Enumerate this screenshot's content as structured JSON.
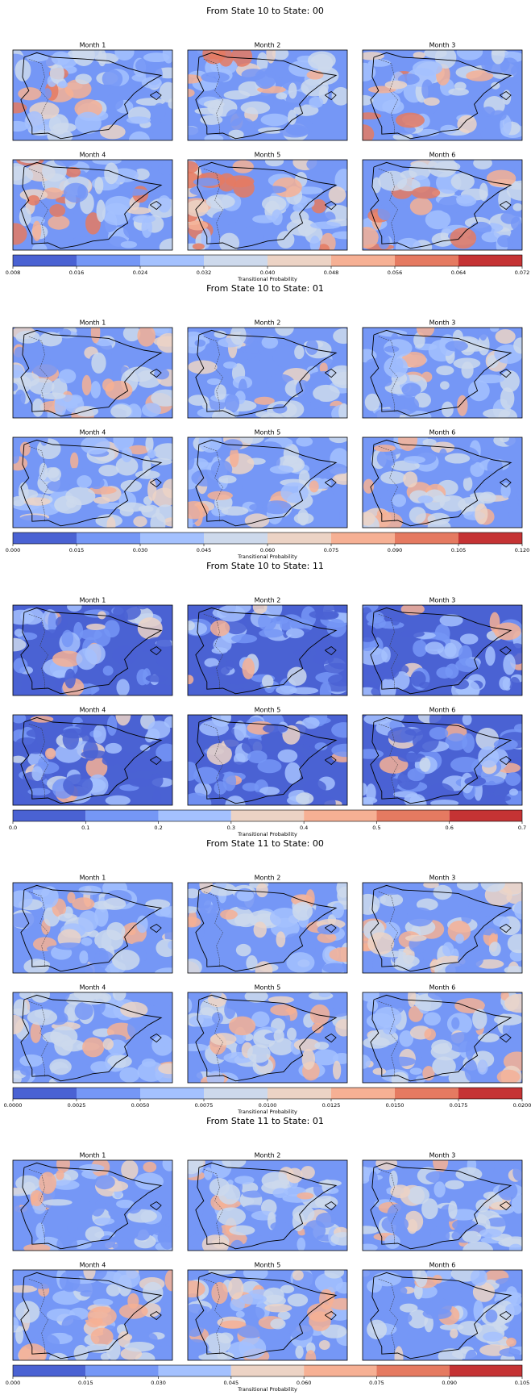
{
  "figures": [
    {
      "title": "From State 10 to State: 00",
      "subplots": [
        "Month 1",
        "Month 2",
        "Month 3",
        "Month 4",
        "Month 5",
        "Month 6"
      ],
      "colorbar": {
        "label": "Transitional Probability",
        "ticks": [
          0.008,
          0.016,
          0.024,
          0.032,
          {
            "value": 0.04,
            "label": "0.040"
          },
          0.048,
          0.056,
          0.064,
          0.072
        ]
      }
    },
    {
      "title": "From State 10 to State: 01",
      "subplots": [
        "Month 1",
        "Month 2",
        "Month 3",
        "Month 4",
        "Month 5",
        "Month 6"
      ],
      "colorbar": {
        "label": "Transitional Probability",
        "ticks": [
          {
            "value": 0,
            "label": "0.000"
          },
          0.015,
          {
            "value": 0.03,
            "label": "0.030"
          },
          0.045,
          {
            "value": 0.06,
            "label": "0.060"
          },
          0.075,
          {
            "value": 0.09,
            "label": "0.090"
          },
          0.105,
          {
            "value": 0.12,
            "label": "0.120"
          }
        ]
      }
    },
    {
      "title": "From State 10 to State: 11",
      "subplots": [
        "Month 1",
        "Month 2",
        "Month 3",
        "Month 4",
        "Month 5",
        "Month 6"
      ],
      "colorbar": {
        "label": "Transitional Probability",
        "ticks": [
          {
            "value": 0,
            "label": "0.0"
          },
          0.1,
          0.2,
          0.3,
          0.4,
          0.5,
          0.6,
          0.7
        ]
      }
    },
    {
      "title": "From State 11 to State: 00",
      "subplots": [
        "Month 1",
        "Month 2",
        "Month 3",
        "Month 4",
        "Month 5",
        "Month 6"
      ],
      "colorbar": {
        "label": "Transitional Probability",
        "ticks": [
          {
            "value": 0,
            "label": "0.0000"
          },
          0.0025,
          {
            "value": 0.005,
            "label": "0.0050"
          },
          0.0075,
          {
            "value": 0.01,
            "label": "0.0100"
          },
          0.0125,
          {
            "value": 0.015,
            "label": "0.0150"
          },
          0.0175,
          {
            "value": 0.02,
            "label": "0.0200"
          }
        ]
      }
    },
    {
      "title": "From State 11 to State: 01",
      "subplots": [
        "Month 1",
        "Month 2",
        "Month 3",
        "Month 4",
        "Month 5",
        "Month 6"
      ],
      "colorbar": {
        "label": "Transitional Probability",
        "ticks": [
          {
            "value": 0,
            "label": "0.000"
          },
          0.015,
          {
            "value": 0.03,
            "label": "0.030"
          },
          0.045,
          {
            "value": 0.06,
            "label": "0.060"
          },
          0.075,
          {
            "value": 0.09,
            "label": "0.090"
          },
          0.105
        ]
      }
    }
  ],
  "colormap": [
    "#4a62d3",
    "#7597f6",
    "#a4c1fe",
    "#cdd9ec",
    "#ecd3c5",
    "#f6b094",
    "#e57a61",
    "#c53334"
  ]
}
